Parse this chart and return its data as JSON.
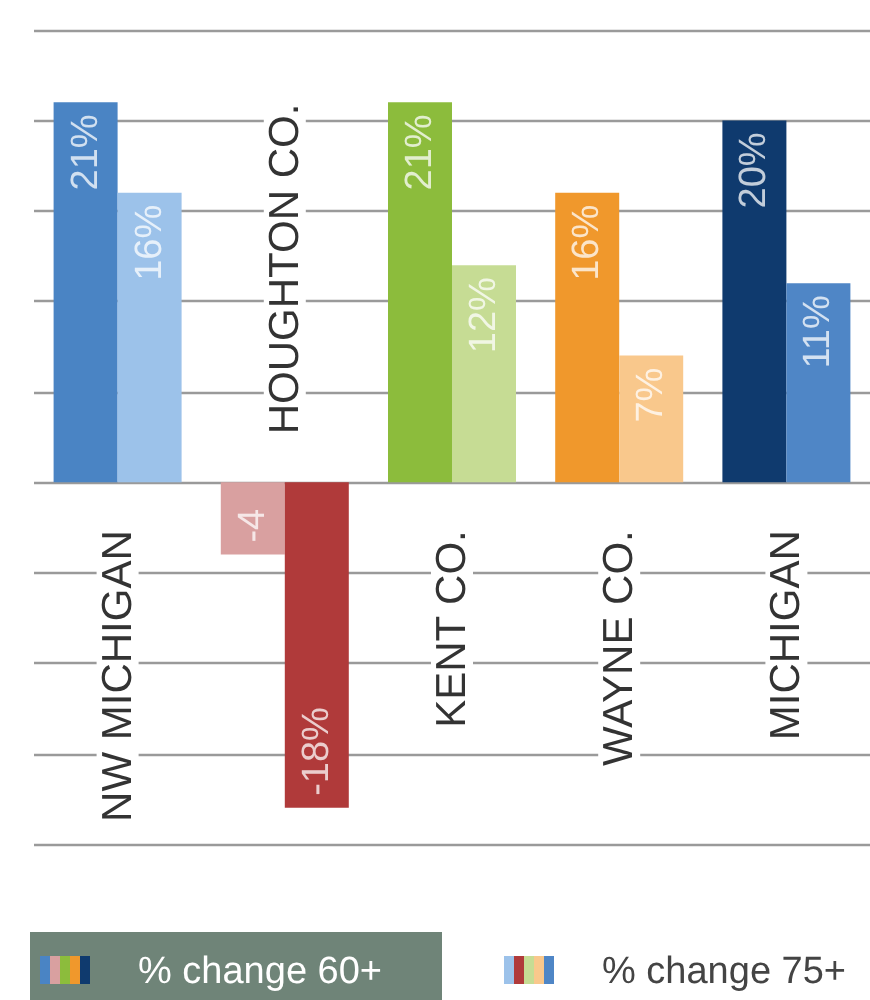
{
  "chart_data": {
    "type": "bar",
    "categories": [
      "NW MICHIGAN",
      "HOUGHTON CO.",
      "KENT CO.",
      "WAYNE CO.",
      "MICHIGAN"
    ],
    "series": [
      {
        "name": "% change 60+",
        "color": "#6f8478",
        "colors": [
          "#4a84c4",
          "#d9a0a0",
          "#8cbc3c",
          "#f0982c",
          "#0f3a6e"
        ],
        "values": [
          21,
          -4,
          21,
          16,
          20
        ],
        "value_labels": [
          "21%",
          "-4",
          "21%",
          "16%",
          "20%"
        ]
      },
      {
        "name": "% change 75+",
        "colors": [
          "#9cc2ea",
          "#b03a3a",
          "#c6dc94",
          "#f9c88c",
          "#4f86c6"
        ],
        "values": [
          16,
          -18,
          12,
          7,
          11
        ],
        "value_labels": [
          "16%",
          "-18%",
          "12%",
          "7%",
          "11%"
        ]
      }
    ],
    "ylim": [
      -20,
      25
    ],
    "yticks": [
      -20,
      -15,
      -10,
      -5,
      0,
      5,
      10,
      15,
      20,
      25
    ],
    "grid": "y",
    "tick_labels": false,
    "legend": "bottom"
  }
}
